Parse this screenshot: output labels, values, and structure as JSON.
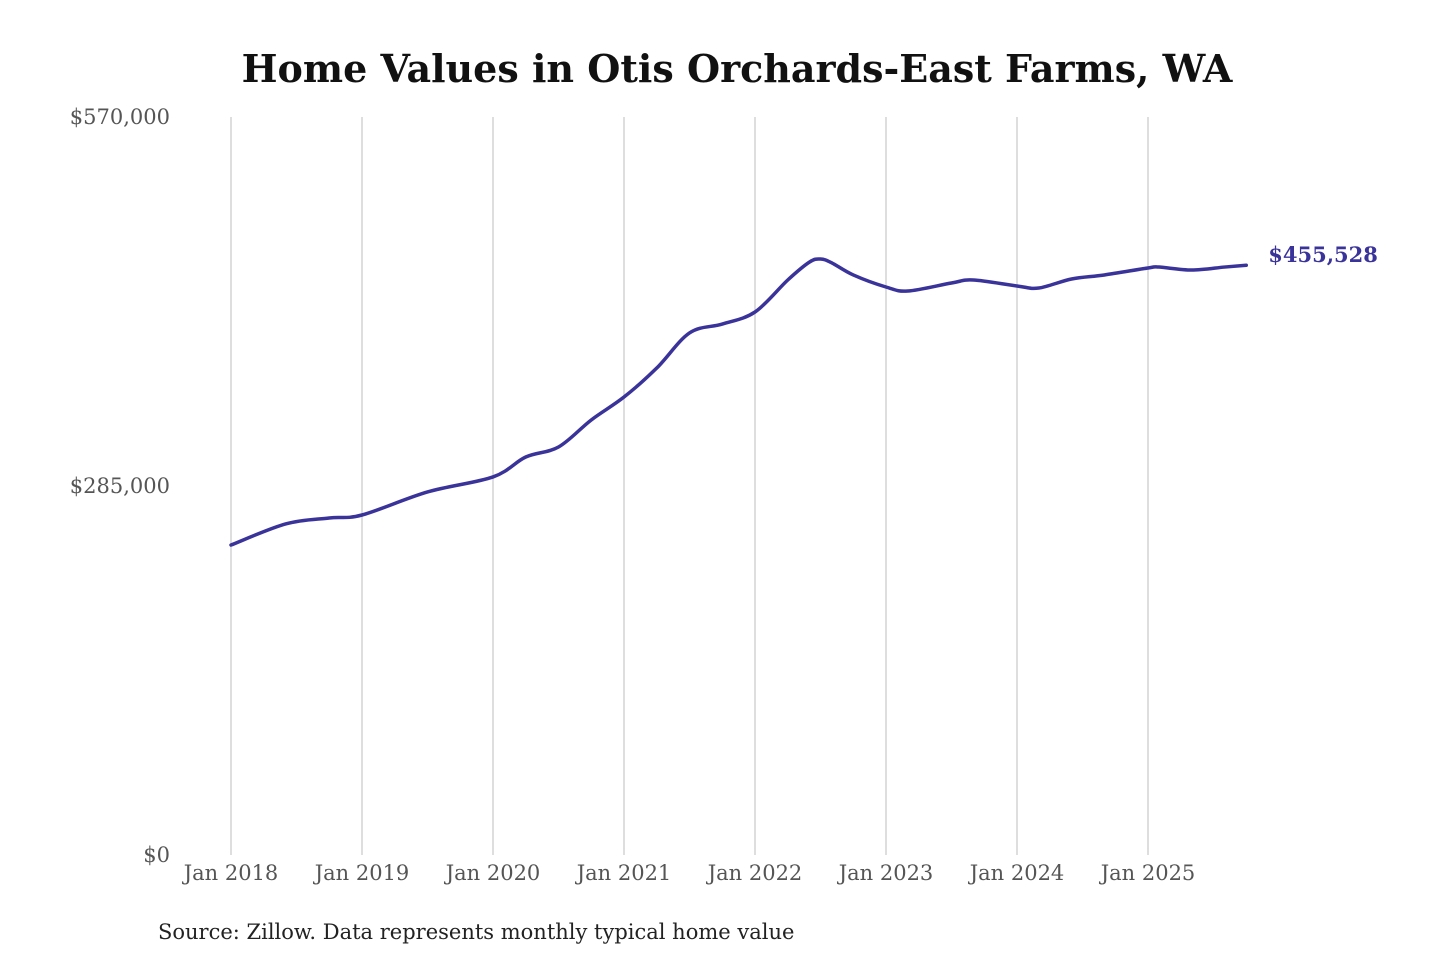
{
  "chart_data": {
    "type": "line",
    "title": "Home Values in Otis Orchards-East Farms, WA",
    "xlabel": "",
    "ylabel": "",
    "ylim": [
      0,
      570000
    ],
    "y_ticks": [
      0,
      285000,
      570000
    ],
    "y_tick_labels": [
      "$0",
      "$285,000",
      "$570,000"
    ],
    "x_ticks": [
      "2018-01",
      "2019-01",
      "2020-01",
      "2021-01",
      "2022-01",
      "2023-01",
      "2024-01",
      "2025-01"
    ],
    "x_tick_labels": [
      "Jan 2018",
      "Jan 2019",
      "Jan 2020",
      "Jan 2021",
      "Jan 2022",
      "Jan 2023",
      "Jan 2024",
      "Jan 2025"
    ],
    "grid": "vertical",
    "line_color": "#3a3399",
    "end_label": "$455,528",
    "source": "Source: Zillow. Data represents monthly typical home value",
    "series": [
      {
        "name": "Typical home value",
        "x": [
          "2018-01",
          "2018-06",
          "2018-10",
          "2019-01",
          "2019-07",
          "2020-01",
          "2020-04",
          "2020-07",
          "2020-10",
          "2021-01",
          "2021-04",
          "2021-07",
          "2021-10",
          "2022-01",
          "2022-04",
          "2022-06",
          "2022-07",
          "2022-08",
          "2022-10",
          "2023-01",
          "2023-03",
          "2023-07",
          "2023-09",
          "2024-01",
          "2024-03",
          "2024-06",
          "2024-09",
          "2025-01",
          "2025-02",
          "2025-05",
          "2025-08",
          "2025-10"
        ],
        "values": [
          239400,
          255700,
          260300,
          262600,
          280400,
          292000,
          307400,
          315100,
          336000,
          353700,
          376100,
          403200,
          410100,
          419400,
          444100,
          458000,
          460300,
          457500,
          448000,
          438700,
          435600,
          441800,
          444100,
          439500,
          437900,
          444900,
          448000,
          453400,
          454100,
          451800,
          454100,
          455528
        ]
      }
    ]
  }
}
